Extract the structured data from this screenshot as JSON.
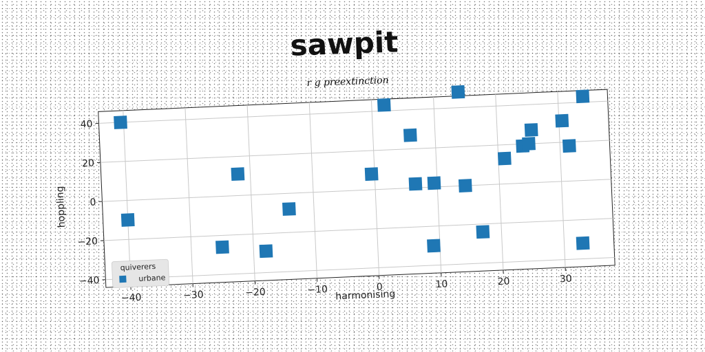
{
  "chart_data": {
    "type": "scatter",
    "title": "sawpit",
    "subtitle": "r g preextinction",
    "xlabel": "harmonising",
    "ylabel": "hoppling",
    "xlim": [
      -44,
      38
    ],
    "ylim": [
      -44,
      46
    ],
    "xticks": [
      -40,
      -30,
      -20,
      -10,
      0,
      10,
      20,
      30
    ],
    "yticks": [
      -40,
      -20,
      0,
      20,
      40
    ],
    "xtick_labels": [
      "−40",
      "−30",
      "−20",
      "−10",
      "0",
      "10",
      "20",
      "30"
    ],
    "ytick_labels": [
      "−40",
      "−20",
      "0",
      "20",
      "40"
    ],
    "grid": true,
    "legend": {
      "title": "quiverers",
      "placement": "lower-left"
    },
    "series": [
      {
        "name": "urbane",
        "color": "#1f77b4",
        "marker": "square",
        "points": [
          {
            "x": -40.5,
            "y": 40
          },
          {
            "x": -40,
            "y": -10
          },
          {
            "x": -25,
            "y": -26
          },
          {
            "x": -22,
            "y": 11
          },
          {
            "x": -18,
            "y": -29
          },
          {
            "x": -14,
            "y": -8
          },
          {
            "x": -0.5,
            "y": 8
          },
          {
            "x": 2,
            "y": 43
          },
          {
            "x": 6,
            "y": 27
          },
          {
            "x": 6.5,
            "y": 2
          },
          {
            "x": 9.5,
            "y": 2
          },
          {
            "x": 9,
            "y": -30
          },
          {
            "x": 14,
            "y": 48
          },
          {
            "x": 14.5,
            "y": 0
          },
          {
            "x": 17,
            "y": -24
          },
          {
            "x": 21,
            "y": 13
          },
          {
            "x": 24,
            "y": 19
          },
          {
            "x": 25,
            "y": 20
          },
          {
            "x": 25.5,
            "y": 27
          },
          {
            "x": 30.5,
            "y": 31
          },
          {
            "x": 31.5,
            "y": 18
          },
          {
            "x": 34,
            "y": 43
          },
          {
            "x": 33,
            "y": -32
          }
        ]
      }
    ]
  }
}
